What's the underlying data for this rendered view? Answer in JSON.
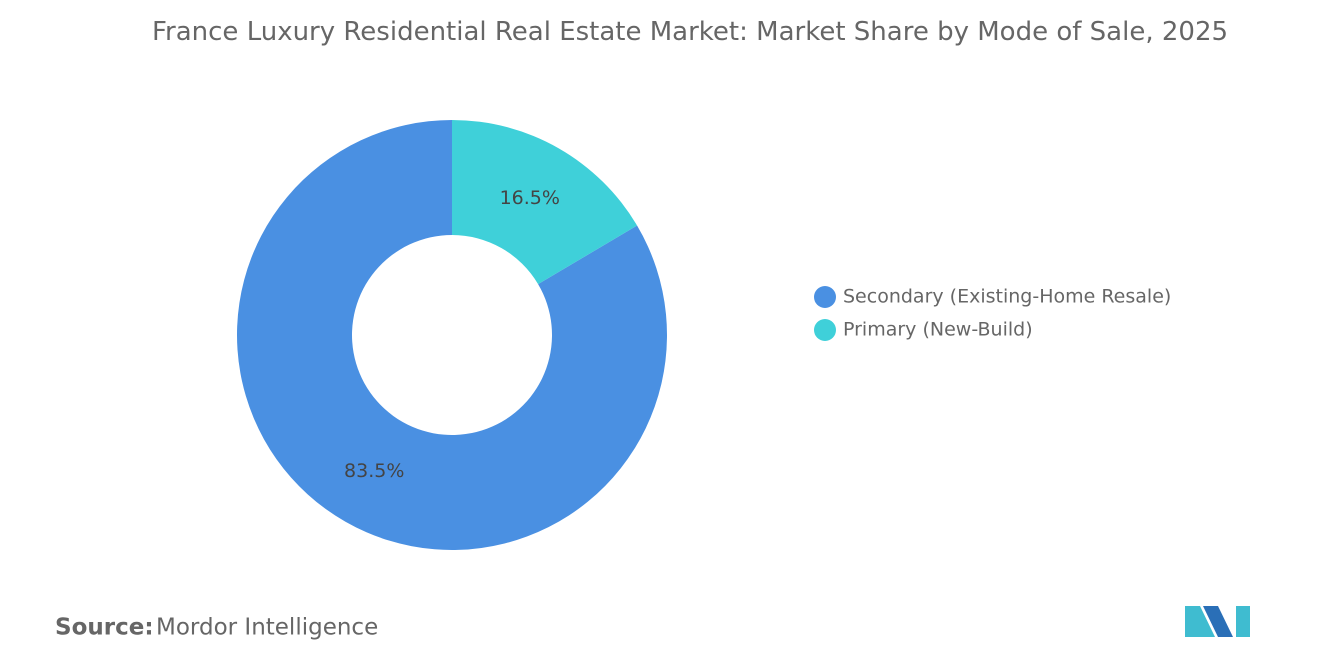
{
  "chart_data": {
    "type": "donut",
    "title": "France Luxury Residential Real Estate Market: Market Share by Mode of Sale, 2025",
    "categories": [
      "Secondary (Existing-Home Resale)",
      "Primary (New-Build)"
    ],
    "values": [
      83.5,
      16.5
    ],
    "value_labels": [
      "83.5%",
      "16.5%"
    ],
    "colors": [
      "#4a90e2",
      "#3fd0d9"
    ],
    "source_label": "Source:",
    "source": "Mordor Intelligence"
  }
}
